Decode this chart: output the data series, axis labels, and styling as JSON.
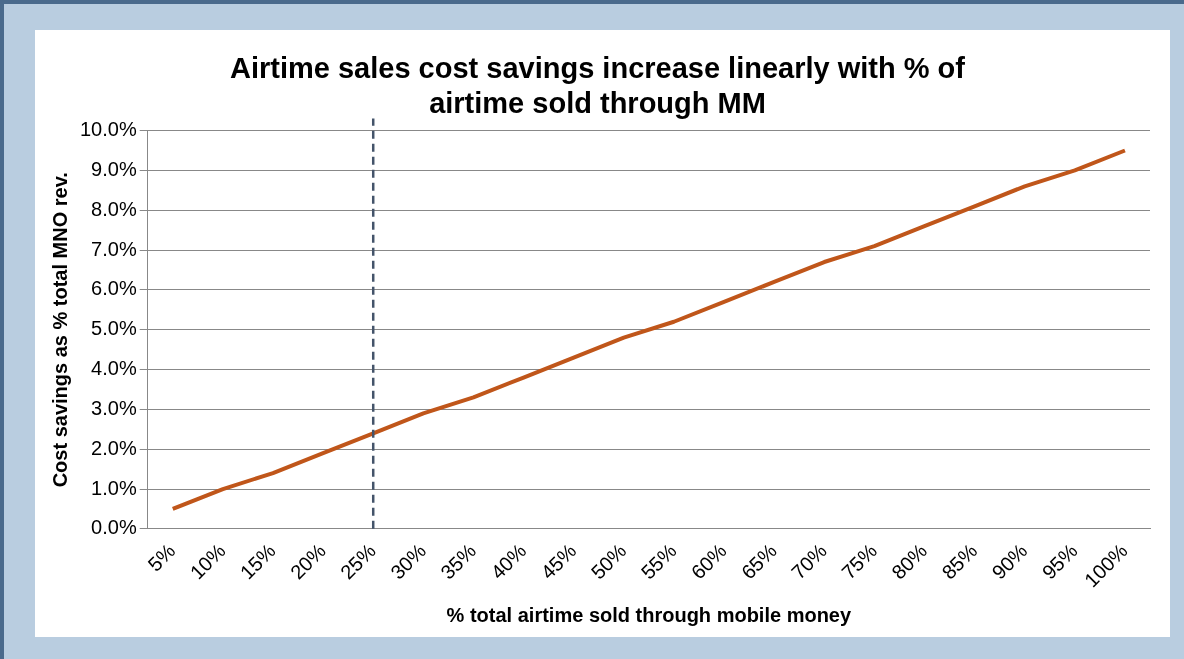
{
  "chart_data": {
    "type": "line",
    "title": [
      "Airtime sales cost savings increase linearly with % of",
      "airtime sold through MM"
    ],
    "xlabel": "% total airtime sold through mobile money",
    "ylabel": "Cost savings as % total MNO rev.",
    "categories": [
      "5%",
      "10%",
      "15%",
      "20%",
      "25%",
      "30%",
      "35%",
      "40%",
      "45%",
      "50%",
      "55%",
      "60%",
      "65%",
      "70%",
      "75%",
      "80%",
      "85%",
      "90%",
      "95%",
      "100%"
    ],
    "series": [
      {
        "color": "#c0561a",
        "values": [
          0.5,
          1.0,
          1.4,
          1.9,
          2.4,
          2.9,
          3.3,
          3.8,
          4.3,
          4.8,
          5.2,
          5.7,
          6.2,
          6.7,
          7.1,
          7.6,
          8.1,
          8.6,
          9.0,
          9.5
        ]
      }
    ],
    "ylim": [
      0,
      10
    ],
    "yticks": [
      {
        "value": 0,
        "label": "0.0%"
      },
      {
        "value": 1,
        "label": "1.0%"
      },
      {
        "value": 2,
        "label": "2.0%"
      },
      {
        "value": 3,
        "label": "3.0%"
      },
      {
        "value": 4,
        "label": "4.0%"
      },
      {
        "value": 5,
        "label": "5.0%"
      },
      {
        "value": 6,
        "label": "6.0%"
      },
      {
        "value": 7,
        "label": "7.0%"
      },
      {
        "value": 8,
        "label": "8.0%"
      },
      {
        "value": 9,
        "label": "9.0%"
      },
      {
        "value": 10,
        "label": "10.0%"
      }
    ],
    "grid": "y",
    "marker": "none",
    "line_style": "solid",
    "ref_lines": [
      {
        "axis": "x",
        "value": "25%",
        "color": "#44546a",
        "line_style": "dashed"
      }
    ]
  }
}
